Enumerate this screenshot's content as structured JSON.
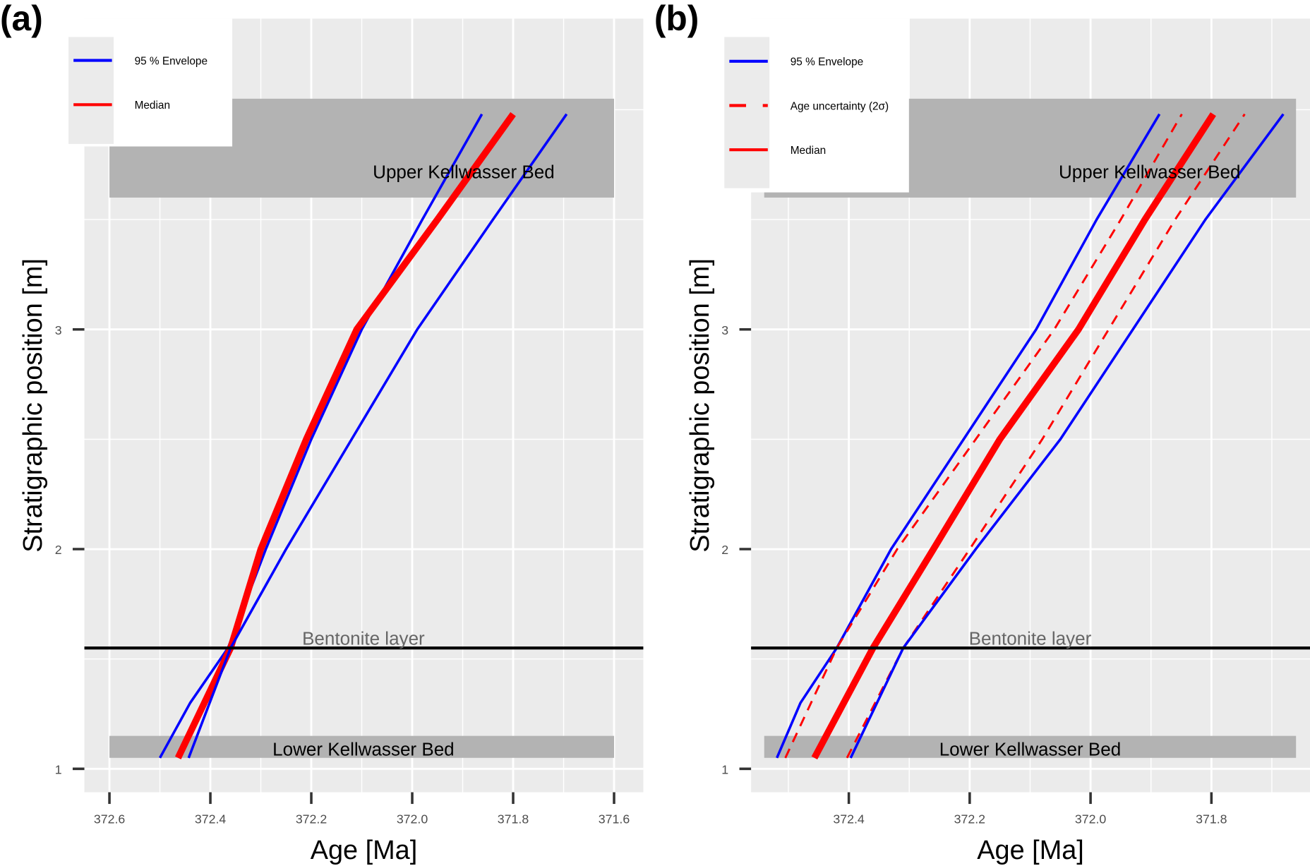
{
  "chart_data": [
    {
      "type": "line",
      "panel_label": "(a)",
      "xlabel": "Age [Ma]",
      "ylabel": "Stratigraphic position [m]",
      "x_reversed": true,
      "xlim": [
        372.65,
        371.58
      ],
      "ylim": [
        0.89,
        4.42
      ],
      "xticks": [
        372.6,
        372.4,
        372.2,
        372.0,
        371.8,
        371.6
      ],
      "xtick_labels": [
        "372.6",
        "372.4",
        "372.2",
        "372.0",
        "371.8",
        "371.6"
      ],
      "yticks": [
        1,
        2,
        3
      ],
      "ytick_labels": [
        "1",
        "2",
        "3"
      ],
      "grid": true,
      "legend": {
        "position": "top-left",
        "entries": [
          {
            "label": "95 % Envelope",
            "color": "#0000FF",
            "style": "solid"
          },
          {
            "label": "Median",
            "color": "#FF0000",
            "style": "solid"
          }
        ]
      },
      "annotations": {
        "bands": [
          {
            "label": "Upper Kellwasser Bed",
            "y_range": [
              3.6,
              4.05
            ],
            "x_range": [
              372.6,
              371.6
            ]
          },
          {
            "label": "Lower Kellwasser Bed",
            "y_range": [
              1.05,
              1.15
            ],
            "x_range": [
              372.6,
              371.6
            ]
          }
        ],
        "hlines": [
          {
            "label": "Bentonite layer",
            "y": 1.55
          }
        ]
      },
      "series": [
        {
          "name": "95 % Envelope (lower)",
          "kind": "envelope",
          "color": "#0000FF",
          "points": [
            [
              372.5,
              1.05
            ],
            [
              372.44,
              1.3
            ],
            [
              372.365,
              1.55
            ],
            [
              372.29,
              2.0
            ],
            [
              372.2,
              2.5
            ],
            [
              372.1,
              3.0
            ],
            [
              371.98,
              3.5
            ],
            [
              371.862,
              3.98
            ]
          ]
        },
        {
          "name": "Median",
          "kind": "median",
          "color": "#FF0000",
          "points": [
            [
              372.464,
              1.05
            ],
            [
              372.36,
              1.55
            ],
            [
              372.3,
              2.0
            ],
            [
              372.21,
              2.5
            ],
            [
              372.11,
              3.0
            ],
            [
              371.95,
              3.5
            ],
            [
              371.8,
              3.98
            ]
          ]
        },
        {
          "name": "95 % Envelope (upper)",
          "kind": "envelope",
          "color": "#0000FF",
          "points": [
            [
              372.443,
              1.05
            ],
            [
              372.36,
              1.55
            ],
            [
              372.25,
              2.0
            ],
            [
              372.12,
              2.5
            ],
            [
              371.99,
              3.0
            ],
            [
              371.84,
              3.5
            ],
            [
              371.694,
              3.98
            ]
          ]
        }
      ]
    },
    {
      "type": "line",
      "panel_label": "(b)",
      "xlabel": "Age [Ma]",
      "ylabel": "Stratigraphic position [m]",
      "x_reversed": true,
      "xlim": [
        372.58,
        371.66
      ],
      "ylim": [
        0.89,
        4.42
      ],
      "xticks": [
        372.4,
        372.2,
        372.0,
        371.8
      ],
      "xtick_labels": [
        "372.4",
        "372.2",
        "372.0",
        "371.8"
      ],
      "yticks": [
        1,
        2,
        3
      ],
      "ytick_labels": [
        "1",
        "2",
        "3"
      ],
      "grid": true,
      "legend": {
        "position": "top-left",
        "entries": [
          {
            "label": "95 % Envelope",
            "color": "#0000FF",
            "style": "solid"
          },
          {
            "label": "Age uncertainty (2σ)",
            "color": "#FF0000",
            "style": "dashed"
          },
          {
            "label": "Median",
            "color": "#FF0000",
            "style": "solid"
          }
        ]
      },
      "annotations": {
        "bands": [
          {
            "label": "Upper Kellwasser Bed",
            "y_range": [
              3.6,
              4.05
            ],
            "x_range": [
              372.54,
              371.66
            ]
          },
          {
            "label": "Lower Kellwasser Bed",
            "y_range": [
              1.05,
              1.15
            ],
            "x_range": [
              372.54,
              371.66
            ]
          }
        ],
        "hlines": [
          {
            "label": "Bentonite layer",
            "y": 1.55
          }
        ]
      },
      "series": [
        {
          "name": "95 % Envelope (lower)",
          "kind": "envelope",
          "color": "#0000FF",
          "points": [
            [
              372.519,
              1.05
            ],
            [
              372.48,
              1.3
            ],
            [
              372.42,
              1.55
            ],
            [
              372.33,
              2.0
            ],
            [
              372.21,
              2.5
            ],
            [
              372.09,
              3.0
            ],
            [
              371.99,
              3.5
            ],
            [
              371.886,
              3.98
            ]
          ]
        },
        {
          "name": "Age uncertainty (2σ, lower)",
          "kind": "uncertainty",
          "color": "#FF0000",
          "points": [
            [
              372.505,
              1.05
            ],
            [
              372.42,
              1.55
            ],
            [
              372.32,
              2.0
            ],
            [
              372.19,
              2.5
            ],
            [
              372.06,
              3.0
            ],
            [
              371.95,
              3.5
            ],
            [
              371.849,
              3.98
            ]
          ]
        },
        {
          "name": "Median",
          "kind": "median",
          "color": "#FF0000",
          "points": [
            [
              372.457,
              1.05
            ],
            [
              372.36,
              1.55
            ],
            [
              372.26,
              2.0
            ],
            [
              372.15,
              2.5
            ],
            [
              372.02,
              3.0
            ],
            [
              371.91,
              3.5
            ],
            [
              371.797,
              3.98
            ]
          ]
        },
        {
          "name": "Age uncertainty (2σ, upper)",
          "kind": "uncertainty",
          "color": "#FF0000",
          "points": [
            [
              372.403,
              1.05
            ],
            [
              372.31,
              1.55
            ],
            [
              372.2,
              2.0
            ],
            [
              372.08,
              2.5
            ],
            [
              371.97,
              3.0
            ],
            [
              371.86,
              3.5
            ],
            [
              371.745,
              3.98
            ]
          ]
        },
        {
          "name": "95 % Envelope (upper)",
          "kind": "envelope",
          "color": "#0000FF",
          "points": [
            [
              372.397,
              1.05
            ],
            [
              372.31,
              1.55
            ],
            [
              372.19,
              2.0
            ],
            [
              372.05,
              2.5
            ],
            [
              371.93,
              3.0
            ],
            [
              371.81,
              3.5
            ],
            [
              371.681,
              3.98
            ]
          ]
        }
      ]
    }
  ]
}
